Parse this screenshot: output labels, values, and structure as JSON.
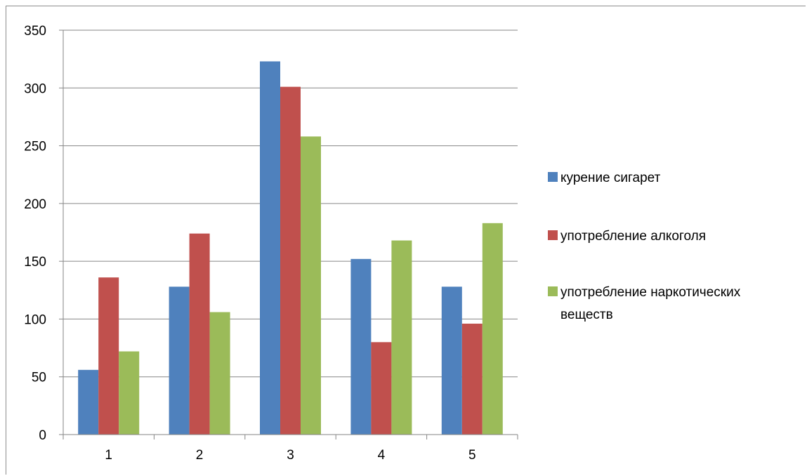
{
  "chart_data": {
    "type": "bar",
    "categories": [
      "1",
      "2",
      "3",
      "4",
      "5"
    ],
    "series": [
      {
        "name": "курение сигарет",
        "color": "#4f81bd",
        "values": [
          56,
          128,
          323,
          152,
          128
        ]
      },
      {
        "name": "употребление алкоголя",
        "color": "#c0504d",
        "values": [
          136,
          174,
          301,
          80,
          96
        ]
      },
      {
        "name": "употребление наркотических веществ",
        "color": "#9bbb59",
        "values": [
          72,
          106,
          258,
          168,
          183
        ]
      }
    ],
    "ylim": [
      0,
      350
    ],
    "yticks": [
      "0",
      "50",
      "100",
      "150",
      "200",
      "250",
      "300",
      "350"
    ],
    "grid": true,
    "legend_position": "right"
  }
}
